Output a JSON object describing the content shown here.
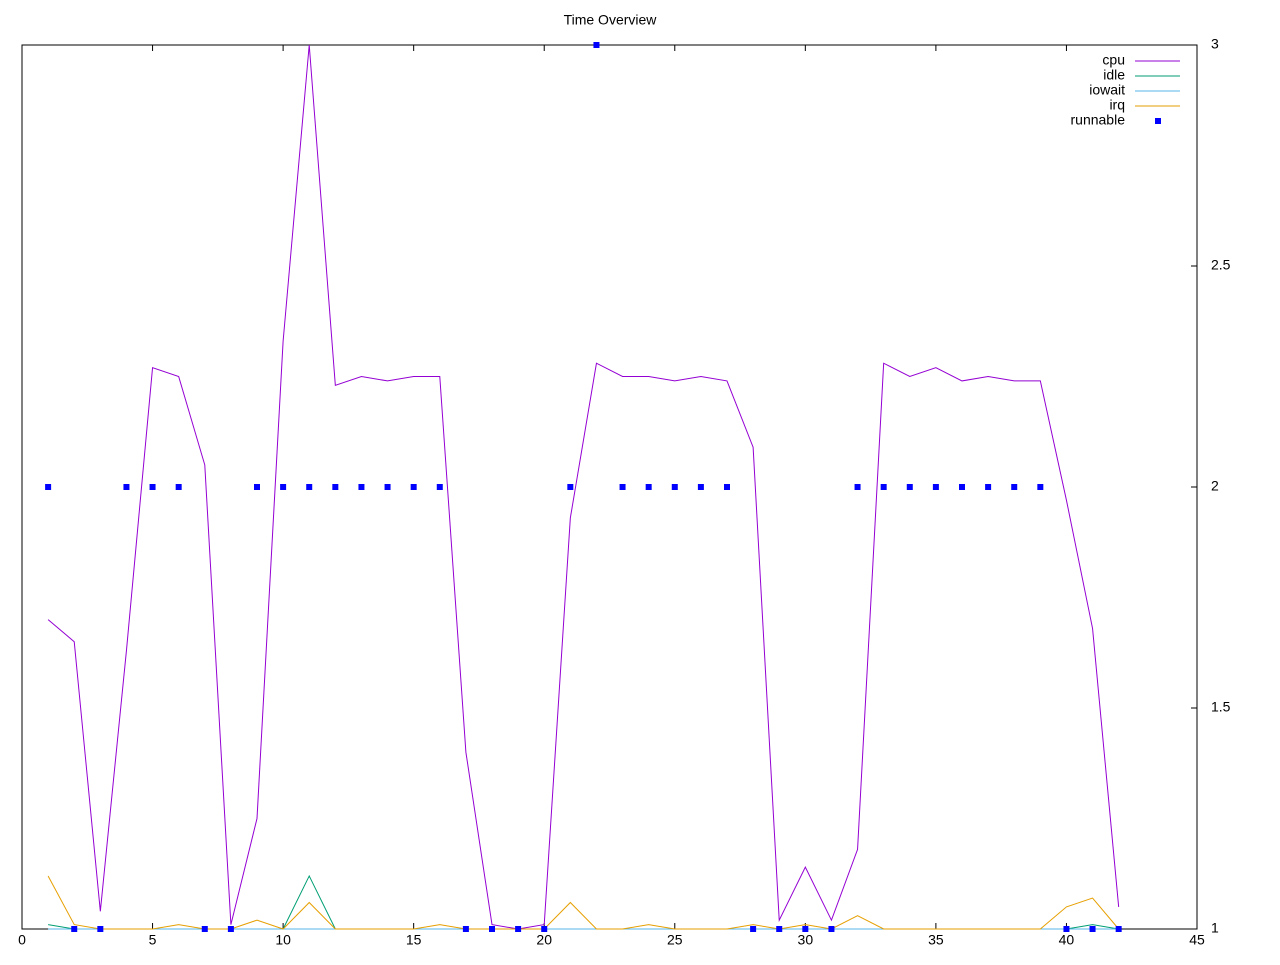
{
  "chart_data": {
    "type": "line",
    "title": "Time Overview",
    "x": [
      1,
      2,
      3,
      4,
      5,
      6,
      7,
      8,
      9,
      10,
      11,
      12,
      13,
      14,
      15,
      16,
      17,
      18,
      19,
      20,
      21,
      22,
      23,
      24,
      25,
      26,
      27,
      28,
      29,
      30,
      31,
      32,
      33,
      34,
      35,
      36,
      37,
      38,
      39,
      40,
      41,
      42
    ],
    "series": [
      {
        "name": "cpu",
        "color": "#9400d3",
        "mode": "lines",
        "values": [
          1.7,
          1.65,
          1.04,
          1.63,
          2.27,
          2.25,
          2.05,
          1.01,
          1.25,
          2.33,
          3.0,
          2.23,
          2.25,
          2.24,
          2.25,
          2.25,
          1.4,
          1.01,
          1.0,
          1.01,
          1.93,
          2.28,
          2.25,
          2.25,
          2.24,
          2.25,
          2.24,
          2.09,
          1.02,
          1.14,
          1.02,
          1.18,
          2.28,
          2.25,
          2.27,
          2.24,
          2.25,
          2.24,
          2.24,
          1.97,
          1.68,
          1.05
        ]
      },
      {
        "name": "idle",
        "color": "#009e73",
        "mode": "lines",
        "values": [
          1.01,
          1.0,
          1.0,
          1.0,
          1.0,
          1.0,
          1.0,
          1.0,
          1.0,
          1.0,
          1.12,
          1.0,
          1.0,
          1.0,
          1.0,
          1.0,
          1.0,
          1.0,
          1.0,
          1.0,
          1.0,
          1.0,
          1.0,
          1.0,
          1.0,
          1.0,
          1.0,
          1.0,
          1.0,
          1.0,
          1.0,
          1.0,
          1.0,
          1.0,
          1.0,
          1.0,
          1.0,
          1.0,
          1.0,
          1.0,
          1.01,
          1.0
        ]
      },
      {
        "name": "iowait",
        "color": "#56b4e9",
        "mode": "lines",
        "values": [
          1.0,
          1.0,
          1.0,
          1.0,
          1.0,
          1.0,
          1.0,
          1.0,
          1.0,
          1.0,
          1.0,
          1.0,
          1.0,
          1.0,
          1.0,
          1.0,
          1.0,
          1.0,
          1.0,
          1.0,
          1.0,
          1.0,
          1.0,
          1.0,
          1.0,
          1.0,
          1.0,
          1.0,
          1.0,
          1.0,
          1.0,
          1.0,
          1.0,
          1.0,
          1.0,
          1.0,
          1.0,
          1.0,
          1.0,
          1.0,
          1.0,
          1.0
        ]
      },
      {
        "name": "irq",
        "color": "#e69f00",
        "mode": "lines",
        "values": [
          1.12,
          1.01,
          1.0,
          1.0,
          1.0,
          1.01,
          1.0,
          1.0,
          1.02,
          1.0,
          1.06,
          1.0,
          1.0,
          1.0,
          1.0,
          1.01,
          1.0,
          1.0,
          1.0,
          1.0,
          1.06,
          1.0,
          1.0,
          1.01,
          1.0,
          1.0,
          1.0,
          1.01,
          1.0,
          1.01,
          1.0,
          1.03,
          1.0,
          1.0,
          1.0,
          1.0,
          1.0,
          1.0,
          1.0,
          1.05,
          1.07,
          1.0
        ]
      },
      {
        "name": "runnable",
        "color": "#0000ff",
        "mode": "points",
        "values": [
          2,
          1,
          1,
          2,
          2,
          2,
          1,
          1,
          2,
          2,
          2,
          2,
          2,
          2,
          2,
          2,
          1,
          1,
          1,
          1,
          2,
          3,
          2,
          2,
          2,
          2,
          2,
          1,
          1,
          1,
          1,
          2,
          2,
          2,
          2,
          2,
          2,
          2,
          2,
          1,
          1,
          1
        ]
      }
    ],
    "xlim": [
      0,
      45
    ],
    "xticks": [
      0,
      5,
      10,
      15,
      20,
      25,
      30,
      35,
      40,
      45
    ],
    "ylim": [
      1,
      3
    ],
    "yticks": [
      1,
      1.5,
      2,
      2.5,
      3
    ],
    "legend": "top-right"
  }
}
